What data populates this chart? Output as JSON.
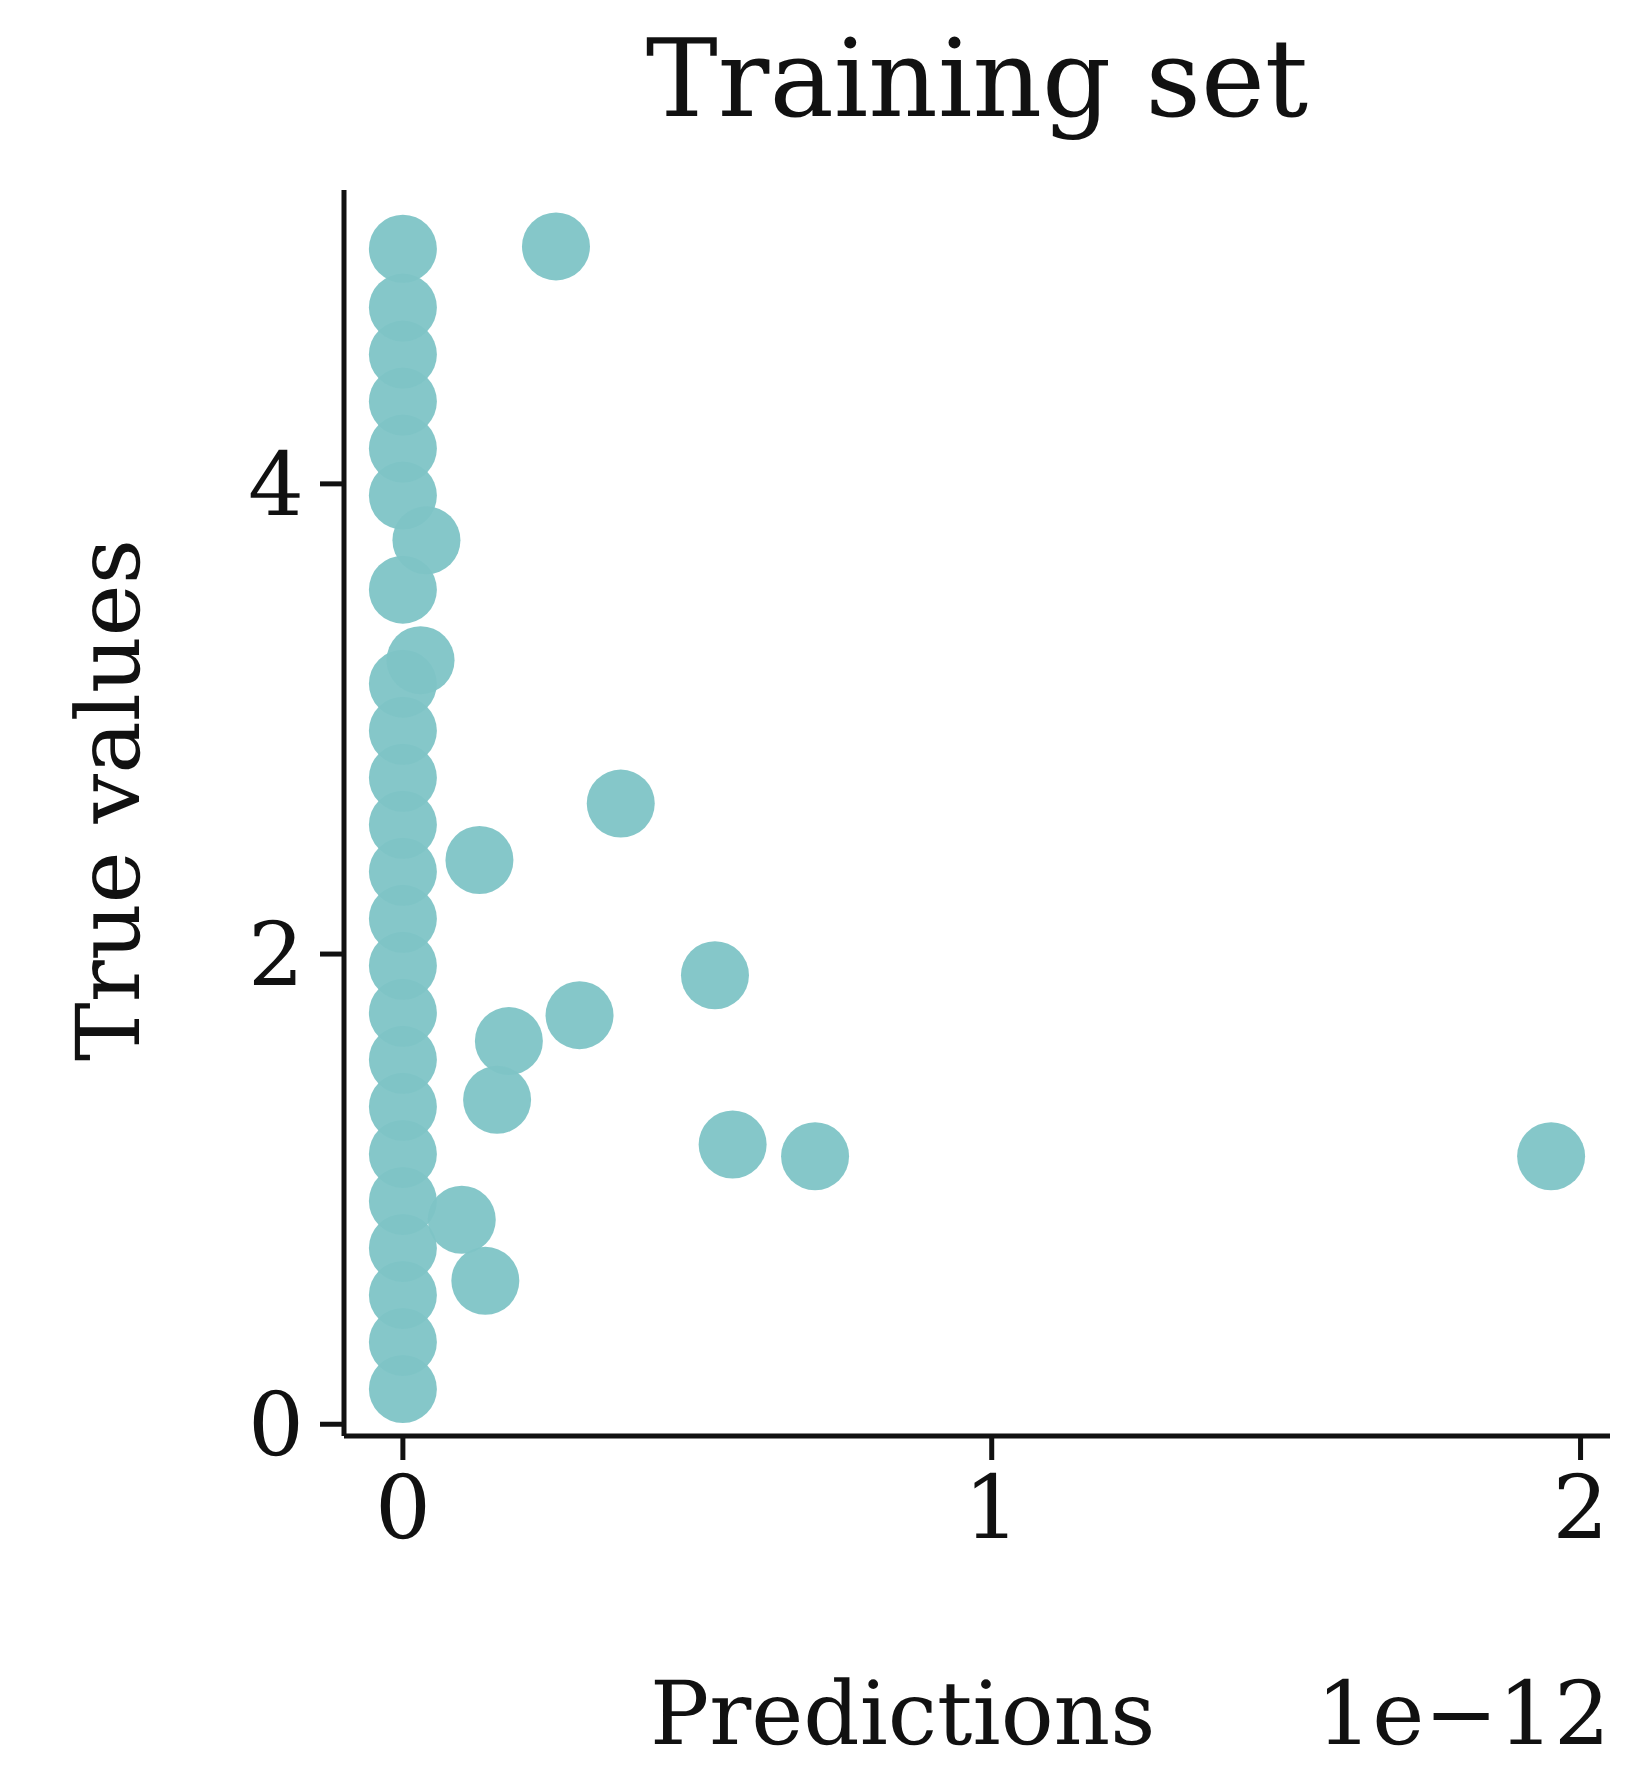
{
  "chart_data": {
    "type": "scatter",
    "title": "Training set",
    "xlabel": "Predictions",
    "ylabel": "True values",
    "annotations": [
      "1e−12"
    ],
    "series": [
      {
        "color": "#7ec4c6",
        "x": [
          0,
          0,
          0,
          0,
          0,
          0,
          0,
          0,
          0,
          0,
          0,
          0,
          0,
          0,
          0,
          0,
          0,
          0,
          0,
          0,
          0,
          0,
          0,
          0.26,
          0.37,
          0.13,
          0.53,
          0.3,
          0.18,
          0.16,
          0.56,
          0.7,
          1.95,
          0.14,
          0.1,
          0.04,
          0.03
        ],
        "values": [
          0.15,
          0.35,
          0.55,
          0.75,
          0.95,
          1.15,
          1.35,
          1.55,
          1.75,
          1.95,
          2.15,
          2.35,
          2.55,
          2.75,
          2.95,
          3.15,
          3.55,
          3.95,
          4.15,
          4.35,
          4.55,
          4.75,
          5.0,
          5.01,
          2.64,
          2.4,
          1.91,
          1.74,
          1.63,
          1.38,
          1.19,
          1.14,
          1.14,
          0.61,
          0.87,
          3.76,
          3.25
        ]
      }
    ],
    "xlim": [
      -0.1,
      2.05
    ],
    "ylim": [
      -0.05,
      5.25
    ],
    "xticks": [
      0,
      1,
      2
    ],
    "yticks": [
      0,
      2,
      4
    ],
    "grid": false,
    "legend": false,
    "marker": "circle"
  }
}
